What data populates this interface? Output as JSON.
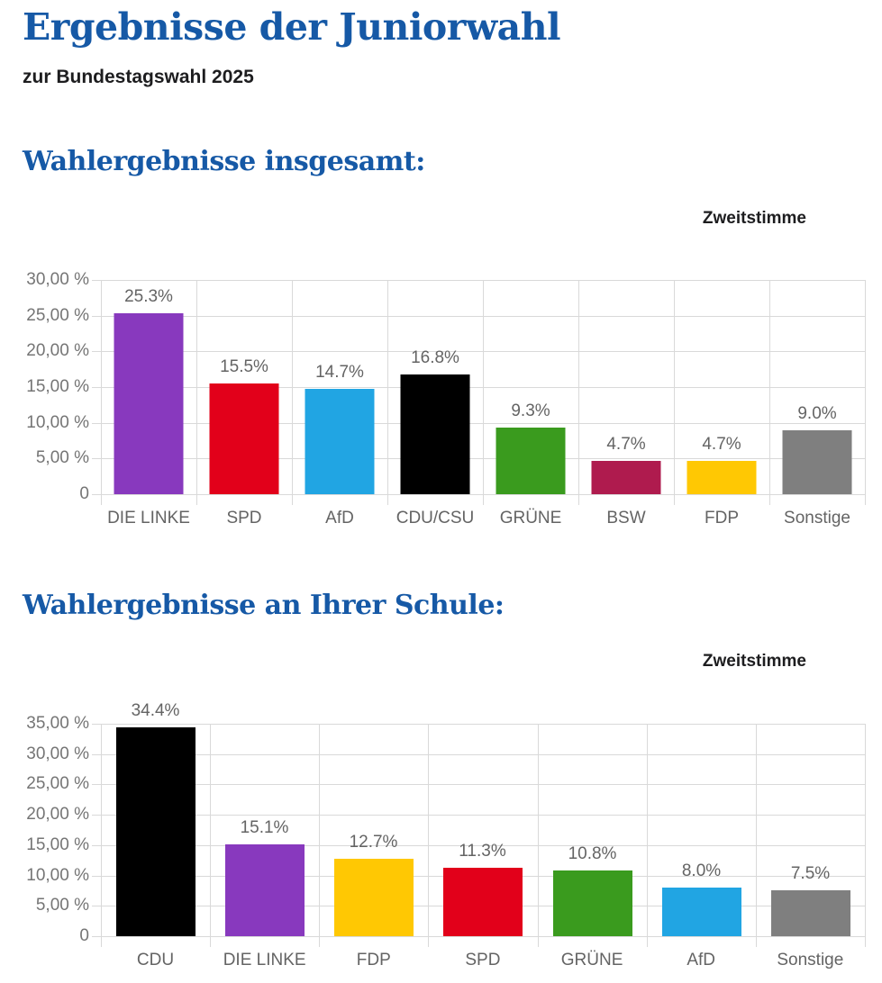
{
  "page": {
    "title": "Ergebnisse der Juniorwahl",
    "subtitle": "zur Bundestagswahl 2025"
  },
  "colors": {
    "heading_blue": "#1659A6",
    "text_black": "#1d1d1f",
    "label_gray": "#646464",
    "grid_gray": "#D9D9D9"
  },
  "chart_data": [
    {
      "type": "bar",
      "title": "Wahlergebnisse insgesamt:",
      "legend": "Zweitstimme",
      "legend_position": "top-right",
      "grid": true,
      "categories": [
        "DIE LINKE",
        "SPD",
        "AfD",
        "CDU/CSU",
        "GRÜNE",
        "BSW",
        "FDP",
        "Sonstige"
      ],
      "values": [
        25.3,
        15.5,
        14.7,
        16.8,
        9.3,
        4.7,
        4.7,
        9.0
      ],
      "value_labels": [
        "25.3%",
        "15.5%",
        "14.7%",
        "16.8%",
        "9.3%",
        "4.7%",
        "4.7%",
        "9.0%"
      ],
      "bar_colors": [
        "#8839BE",
        "#E2001A",
        "#21A5E3",
        "#000000",
        "#3A9B1E",
        "#AF1B4E",
        "#FFC803",
        "#7F7F7F"
      ],
      "xlabel": "",
      "ylabel": "",
      "ylim": [
        0,
        30
      ],
      "ytick_labels_top_to_bottom": [
        "30,00 %",
        "25,00 %",
        "20,00 %",
        "15,00 %",
        "10,00 %",
        "5,00 %",
        "0"
      ]
    },
    {
      "type": "bar",
      "title": "Wahlergebnisse an Ihrer Schule:",
      "legend": "Zweitstimme",
      "legend_position": "top-right",
      "grid": true,
      "categories": [
        "CDU",
        "DIE LINKE",
        "FDP",
        "SPD",
        "GRÜNE",
        "AfD",
        "Sonstige"
      ],
      "values": [
        34.4,
        15.1,
        12.7,
        11.3,
        10.8,
        8.0,
        7.5
      ],
      "value_labels": [
        "34.4%",
        "15.1%",
        "12.7%",
        "11.3%",
        "10.8%",
        "8.0%",
        "7.5%"
      ],
      "bar_colors": [
        "#000000",
        "#8839BE",
        "#FFC803",
        "#E2001A",
        "#3A9B1E",
        "#21A5E3",
        "#7F7F7F"
      ],
      "xlabel": "",
      "ylabel": "",
      "ylim": [
        0,
        35
      ],
      "ytick_labels_top_to_bottom": [
        "35,00 %",
        "30,00 %",
        "25,00 %",
        "20,00 %",
        "15,00 %",
        "10,00 %",
        "5,00 %",
        "0"
      ]
    }
  ]
}
